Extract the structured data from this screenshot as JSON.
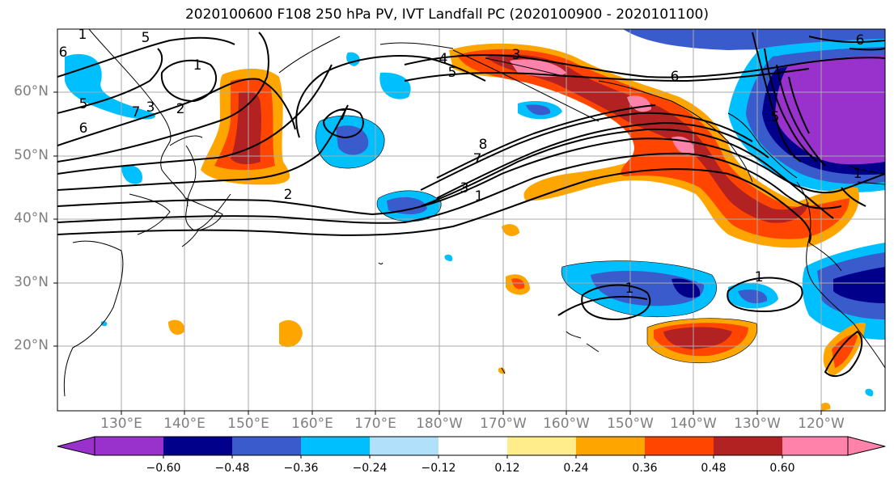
{
  "title": "2020100600 F108 250 hPa PV, IVT Landfall PC (2020100900 - 2020101100)",
  "map": {
    "lat_labels": [
      "60°N",
      "50°N",
      "40°N",
      "30°N",
      "20°N"
    ],
    "lon_labels": [
      "130°E",
      "140°E",
      "150°E",
      "160°E",
      "170°E",
      "180°W",
      "170°W",
      "160°W",
      "150°W",
      "140°W",
      "130°W",
      "120°W"
    ],
    "contour_labels": [
      "1",
      "5",
      "6",
      "5",
      "7",
      "3",
      "2",
      "1",
      "6",
      "4",
      "5",
      "3",
      "7",
      "8",
      "7",
      "2",
      "3",
      "1",
      "1",
      "1",
      "6",
      "5",
      "1",
      "6"
    ]
  },
  "colorbar": {
    "tick_labels": [
      "−0.60",
      "−0.48",
      "−0.36",
      "−0.24",
      "−0.12",
      "0.12",
      "0.24",
      "0.36",
      "0.48",
      "0.60"
    ],
    "colors": [
      "#9932cc",
      "#00008b",
      "#3a5bcc",
      "#00bfff",
      "#b0e0fa",
      "#ffffff",
      "#ffec8b",
      "#ffa500",
      "#ff4500",
      "#b22222",
      "#ff82ab"
    ]
  }
}
